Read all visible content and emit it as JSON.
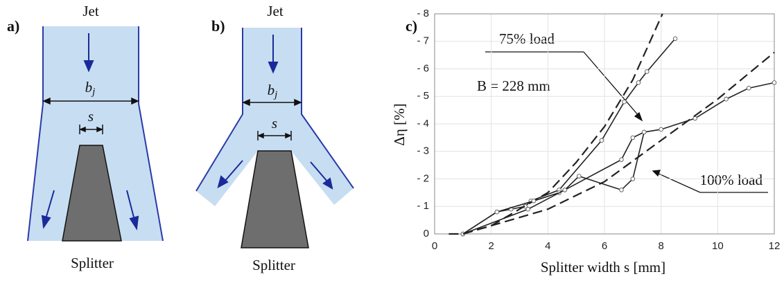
{
  "panels": {
    "a": {
      "label": "a)",
      "jet": "Jet",
      "splitter": "Splitter",
      "width": {
        "symbol": "b",
        "subscript": "j"
      },
      "gap": "s"
    },
    "b": {
      "label": "b)",
      "jet": "Jet",
      "splitter": "Splitter",
      "width": {
        "symbol": "b",
        "subscript": "j"
      },
      "gap": "s"
    },
    "c": {
      "label": "c)"
    }
  },
  "chart_data": {
    "type": "line",
    "xlabel": "Splitter width s [mm]",
    "ylabel": "Δη  [%]",
    "xlim": [
      0,
      12
    ],
    "xticks": [
      0,
      2,
      4,
      6,
      8,
      10,
      12
    ],
    "ylim": [
      0,
      -8
    ],
    "yticks": [
      0,
      {
        "value": -1,
        "label": "- 1"
      },
      {
        "value": -2,
        "label": "- 2"
      },
      {
        "value": -3,
        "label": "- 3"
      },
      {
        "value": -4,
        "label": "- 4"
      },
      {
        "value": -5,
        "label": "- 5"
      },
      {
        "value": -6,
        "label": "- 6"
      },
      {
        "value": -7,
        "label": "- 7"
      },
      {
        "value": -8,
        "label": "- 8"
      }
    ],
    "grid": true,
    "annotations": [
      "75% load",
      "B = 228 mm",
      "100% load"
    ],
    "series": [
      {
        "color": "#222222",
        "marker": "circle",
        "dash": false,
        "x": [
          1,
          2.2,
          2.7,
          3.2,
          3.4,
          4.4,
          5.9,
          6.7,
          7.2,
          7.5,
          8.5
        ],
        "values": [
          0,
          -0.8,
          -0.9,
          -1,
          -1.2,
          -1.6,
          -3.4,
          -4.8,
          -5.5,
          -5.9,
          -7.1
        ]
      },
      {
        "color": "#222222",
        "marker": "none",
        "dash": true,
        "x": [
          0.5,
          1,
          2,
          3,
          4,
          5,
          6,
          7,
          8.05
        ],
        "values": [
          0,
          0,
          -0.3,
          -0.9,
          -1.5,
          -2.6,
          -3.9,
          -5.6,
          -8
        ]
      },
      {
        "color": "#222222",
        "marker": "circle",
        "dash": false,
        "x": [
          1,
          2.2,
          3.5,
          4.4,
          4.6,
          6.6,
          7,
          7.4,
          8,
          9.2,
          10.3,
          11.1,
          12
        ],
        "values": [
          0,
          -0.8,
          -1.2,
          -1.5,
          -1.6,
          -2.7,
          -3.5,
          -3.7,
          -3.8,
          -4.2,
          -4.9,
          -5.3,
          -5.5
        ]
      },
      {
        "color": "#222222",
        "marker": "circle",
        "dash": false,
        "x": [
          1,
          3.3,
          4.6,
          5.1,
          6.6,
          7,
          7.4
        ],
        "values": [
          0,
          -0.9,
          -1.6,
          -2.1,
          -1.6,
          -2,
          -3.7
        ]
      },
      {
        "color": "#222222",
        "marker": "none",
        "dash": true,
        "x": [
          1,
          4,
          6,
          8,
          10,
          12
        ],
        "values": [
          0,
          -0.9,
          -1.9,
          -3.4,
          -4.9,
          -6.6
        ]
      }
    ]
  }
}
